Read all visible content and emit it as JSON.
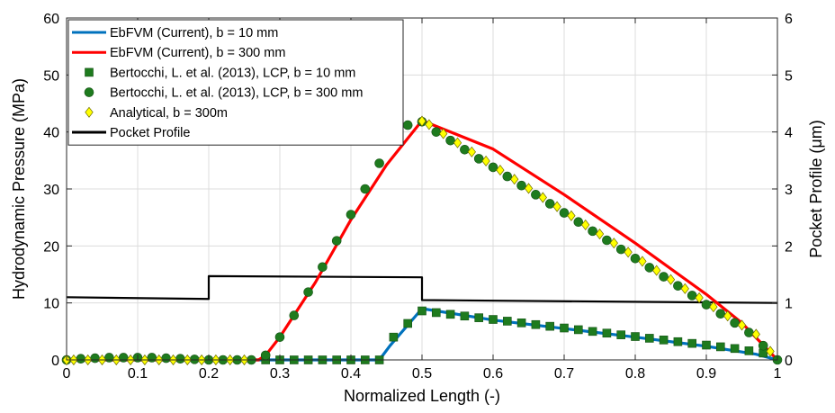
{
  "chart_data": {
    "type": "line",
    "xlabel": "Normalized Length (-)",
    "ylabel": "Hydrodynamic Pressure (MPa)",
    "y2label": "Pocket Profile (μm)",
    "xlim": [
      0,
      1
    ],
    "ylim": [
      0,
      60
    ],
    "y2lim": [
      0,
      6
    ],
    "grid": true,
    "legend_position": "top-left",
    "x_ticks": [
      "0",
      "0.1",
      "0.2",
      "0.3",
      "0.4",
      "0.5",
      "0.6",
      "0.7",
      "0.8",
      "0.9",
      "1"
    ],
    "y_ticks": [
      "0",
      "10",
      "20",
      "30",
      "40",
      "50",
      "60"
    ],
    "y2_ticks": [
      "0",
      "1",
      "2",
      "3",
      "4",
      "5",
      "6"
    ],
    "series": [
      {
        "name": "EbFVM (Current), b = 10 mm",
        "kind": "line",
        "axis": "left",
        "color": "#0072BD",
        "x": [
          0,
          0.44,
          0.455,
          0.5,
          0.6,
          0.7,
          0.8,
          0.9,
          0.97,
          1.0
        ],
        "y": [
          0,
          0,
          2.5,
          9.0,
          7.0,
          5.5,
          4.0,
          2.4,
          1.0,
          0
        ]
      },
      {
        "name": "EbFVM (Current), b = 300 mm",
        "kind": "line",
        "axis": "left",
        "color": "#FF0000",
        "x": [
          0,
          0.27,
          0.28,
          0.3,
          0.35,
          0.4,
          0.45,
          0.5,
          0.6,
          0.7,
          0.8,
          0.9,
          0.95,
          1.0
        ],
        "y": [
          0,
          0,
          0.8,
          4.0,
          13.6,
          24.6,
          34.2,
          42.0,
          37.0,
          29.0,
          20.5,
          11.5,
          6.5,
          0
        ]
      },
      {
        "name": "Bertocchi, L. et al. (2013), LCP, b = 10 mm",
        "kind": "square",
        "axis": "left",
        "color": "#1E7B1E",
        "x": [
          0.28,
          0.3,
          0.32,
          0.34,
          0.36,
          0.38,
          0.4,
          0.42,
          0.44,
          0.46,
          0.48,
          0.5,
          0.52,
          0.54,
          0.56,
          0.58,
          0.6,
          0.62,
          0.64,
          0.66,
          0.68,
          0.7,
          0.72,
          0.74,
          0.76,
          0.78,
          0.8,
          0.82,
          0.84,
          0.86,
          0.88,
          0.9,
          0.92,
          0.94,
          0.96,
          0.98
        ],
        "y": [
          0,
          0,
          0,
          0,
          0,
          0,
          0,
          0,
          0,
          4.0,
          6.4,
          8.6,
          8.3,
          8.0,
          7.7,
          7.4,
          7.1,
          6.8,
          6.5,
          6.2,
          5.9,
          5.6,
          5.3,
          5.0,
          4.7,
          4.4,
          4.1,
          3.8,
          3.5,
          3.2,
          2.9,
          2.6,
          2.3,
          2.0,
          1.6,
          1.2
        ]
      },
      {
        "name": "Bertocchi, L. et al. (2013), LCP, b = 300 mm",
        "kind": "circle",
        "axis": "left",
        "color": "#1E7B1E",
        "x": [
          0.0,
          0.02,
          0.04,
          0.06,
          0.08,
          0.1,
          0.12,
          0.14,
          0.16,
          0.18,
          0.2,
          0.22,
          0.24,
          0.26,
          0.28,
          0.3,
          0.32,
          0.34,
          0.36,
          0.38,
          0.4,
          0.42,
          0.44,
          0.46,
          0.48,
          0.5,
          0.52,
          0.54,
          0.56,
          0.58,
          0.6,
          0.62,
          0.64,
          0.66,
          0.68,
          0.7,
          0.72,
          0.74,
          0.76,
          0.78,
          0.8,
          0.82,
          0.84,
          0.86,
          0.88,
          0.9,
          0.92,
          0.94,
          0.96,
          0.98,
          1.0
        ],
        "y": [
          0,
          0.2,
          0.3,
          0.4,
          0.4,
          0.4,
          0.4,
          0.3,
          0.2,
          0.1,
          0,
          0,
          0,
          0,
          0.8,
          4.0,
          7.8,
          11.9,
          16.3,
          20.9,
          25.5,
          30.0,
          34.5,
          38.5,
          41.2,
          41.8,
          40.0,
          38.5,
          36.9,
          35.3,
          33.8,
          32.2,
          30.6,
          29.0,
          27.4,
          25.8,
          24.2,
          22.6,
          21.0,
          19.4,
          17.8,
          16.2,
          14.6,
          13.0,
          11.3,
          9.7,
          8.1,
          6.5,
          4.8,
          2.5,
          0
        ]
      },
      {
        "name": "Analytical, b = 300m",
        "kind": "diamond",
        "axis": "left",
        "color": "#FFFF00",
        "x": [
          0.0,
          0.01,
          0.03,
          0.05,
          0.07,
          0.09,
          0.11,
          0.13,
          0.15,
          0.17,
          0.19,
          0.21,
          0.23,
          0.25,
          0.5,
          0.51,
          0.53,
          0.55,
          0.57,
          0.59,
          0.61,
          0.63,
          0.65,
          0.67,
          0.69,
          0.71,
          0.73,
          0.75,
          0.77,
          0.79,
          0.81,
          0.83,
          0.85,
          0.87,
          0.89,
          0.91,
          0.93,
          0.95,
          0.97,
          0.99
        ],
        "y": [
          0,
          0,
          0,
          0,
          0,
          0,
          0,
          0,
          0,
          0,
          0,
          0,
          0,
          0,
          41.9,
          41.3,
          39.7,
          38.1,
          36.5,
          34.9,
          33.3,
          31.7,
          30.1,
          28.5,
          26.9,
          25.3,
          23.7,
          22.1,
          20.5,
          18.9,
          17.3,
          15.7,
          14.1,
          12.5,
          10.9,
          9.3,
          7.7,
          6.1,
          4.5,
          1.5
        ]
      },
      {
        "name": "Pocket Profile",
        "kind": "line",
        "axis": "right",
        "color": "#000000",
        "x": [
          0,
          0.2,
          0.2,
          0.5,
          0.5,
          1.0
        ],
        "y": [
          1.1,
          1.07,
          1.47,
          1.45,
          1.05,
          1.0
        ]
      }
    ]
  }
}
